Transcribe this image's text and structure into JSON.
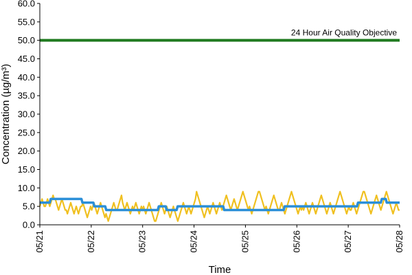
{
  "chart_data": {
    "type": "line",
    "title": "",
    "xlabel": "Time",
    "ylabel": "Concentration (µg/m³)",
    "ylim": [
      0,
      60
    ],
    "y_ticks": [
      "0.0",
      "5.0",
      "10.0",
      "15.0",
      "20.0",
      "25.0",
      "30.0",
      "35.0",
      "40.0",
      "45.0",
      "50.0",
      "55.0",
      "60.0"
    ],
    "x_ticks": [
      "05/21",
      "05/22",
      "05/23",
      "05/24",
      "05/25",
      "05/26",
      "05/27",
      "05/28"
    ],
    "x_range_days": [
      0,
      7
    ],
    "grid": false,
    "colors": {
      "hourly": "#f0c020",
      "daily": "#2b8fd8",
      "objective": "#1f7a1f"
    },
    "objective": {
      "label": "24 Hour Air Quality Objective",
      "value": 50
    },
    "series": [
      {
        "key": "hourly",
        "values": [
          5,
          6,
          7,
          6,
          5,
          5,
          6,
          7,
          6,
          5,
          6,
          7,
          8,
          7,
          7,
          6,
          5,
          4,
          5,
          6,
          7,
          6,
          5,
          4,
          4,
          3,
          4,
          5,
          6,
          5,
          4,
          3,
          4,
          5,
          4,
          3,
          4,
          5,
          5,
          6,
          5,
          4,
          3,
          2,
          3,
          4,
          5,
          4,
          5,
          6,
          5,
          4,
          3,
          4,
          5,
          6,
          5,
          4,
          3,
          2,
          3,
          2,
          1,
          2,
          3,
          4,
          5,
          6,
          5,
          4,
          4,
          5,
          6,
          7,
          8,
          6,
          5,
          4,
          5,
          6,
          5,
          4,
          3,
          4,
          5,
          4,
          5,
          6,
          5,
          4,
          3,
          4,
          5,
          4,
          5,
          4,
          3,
          4,
          5,
          6,
          5,
          4,
          3,
          2,
          1,
          1,
          2,
          3,
          4,
          5,
          6,
          5,
          4,
          3,
          4,
          5,
          4,
          3,
          2,
          3,
          4,
          5,
          4,
          3,
          2,
          1,
          2,
          3,
          4,
          5,
          6,
          5,
          4,
          3,
          4,
          5,
          4,
          3,
          4,
          5,
          6,
          7,
          9,
          8,
          7,
          6,
          5,
          4,
          3,
          2,
          3,
          4,
          5,
          4,
          3,
          4,
          5,
          6,
          5,
          4,
          3,
          4,
          5,
          6,
          5,
          4,
          5,
          6,
          7,
          8,
          7,
          6,
          5,
          4,
          5,
          6,
          7,
          6,
          5,
          4,
          5,
          6,
          7,
          8,
          9,
          8,
          7,
          6,
          5,
          4,
          5,
          4,
          3,
          4,
          5,
          6,
          7,
          8,
          9,
          9,
          8,
          7,
          6,
          5,
          4,
          5,
          4,
          3,
          4,
          5,
          6,
          7,
          8,
          7,
          6,
          5,
          4,
          4,
          5,
          6,
          5,
          4,
          3,
          4,
          5,
          6,
          7,
          8,
          9,
          8,
          7,
          6,
          5,
          4,
          3,
          4,
          5,
          4,
          5,
          4,
          5,
          6,
          5,
          4,
          3,
          4,
          5,
          6,
          5,
          4,
          3,
          4,
          5,
          6,
          7,
          8,
          7,
          6,
          5,
          4,
          3,
          4,
          5,
          6,
          5,
          4,
          3,
          4,
          5,
          6,
          7,
          8,
          9,
          8,
          7,
          6,
          5,
          4,
          3,
          4,
          5,
          4,
          4,
          5,
          6,
          5,
          4,
          3,
          4,
          5,
          6,
          7,
          8,
          9,
          9,
          8,
          7,
          6,
          5,
          4,
          3,
          4,
          5,
          6,
          7,
          8,
          7,
          6,
          5,
          4,
          5,
          6,
          7,
          8,
          9,
          8,
          7,
          6,
          5,
          4,
          3,
          4,
          5,
          6,
          5,
          4,
          4
        ]
      },
      {
        "key": "daily",
        "values": [
          6,
          6,
          6,
          6,
          6,
          6,
          6,
          6,
          6,
          6,
          6,
          7,
          7,
          7,
          7,
          7,
          7,
          7,
          7,
          7,
          7,
          7,
          7,
          7,
          7,
          7,
          7,
          7,
          7,
          7,
          7,
          7,
          7,
          7,
          7,
          7,
          7,
          7,
          7,
          7,
          7,
          7,
          7,
          6,
          6,
          6,
          6,
          6,
          6,
          6,
          6,
          6,
          6,
          6,
          6,
          5,
          5,
          5,
          5,
          5,
          5,
          5,
          5,
          5,
          5,
          5,
          5,
          4,
          4,
          4,
          4,
          4,
          4,
          4,
          4,
          4,
          4,
          4,
          4,
          4,
          4,
          4,
          4,
          4,
          4,
          4,
          4,
          4,
          4,
          4,
          4,
          4,
          4,
          4,
          4,
          4,
          4,
          4,
          4,
          4,
          4,
          4,
          4,
          4,
          4,
          4,
          4,
          4,
          4,
          4,
          4,
          4,
          4,
          4,
          4,
          4,
          4,
          4,
          4,
          4,
          5,
          5,
          5,
          5,
          5,
          5,
          5,
          5,
          4,
          4,
          4,
          4,
          4,
          4,
          4,
          4,
          4,
          4,
          4,
          5,
          5,
          5,
          5,
          5,
          5,
          5,
          5,
          5,
          5,
          5,
          5,
          5,
          5,
          5,
          5,
          5,
          5,
          5,
          5,
          5,
          5,
          5,
          5,
          5,
          5,
          5,
          5,
          5,
          5,
          5,
          5,
          5,
          5,
          5,
          5,
          5,
          5,
          5,
          5,
          5,
          5,
          5,
          5,
          5,
          5,
          5,
          4,
          4,
          4,
          4,
          4,
          4,
          4,
          4,
          4,
          4,
          4,
          4,
          4,
          4,
          4,
          4,
          4,
          4,
          4,
          4,
          4,
          4,
          4,
          4,
          4,
          4,
          4,
          4,
          4,
          4,
          4,
          4,
          4,
          4,
          4,
          4,
          4,
          4,
          4,
          4,
          4,
          4,
          4,
          4,
          4,
          4,
          4,
          4,
          4,
          4,
          4,
          4,
          4,
          4,
          4,
          4,
          4,
          4,
          4,
          4,
          4,
          5,
          5,
          5,
          5,
          5,
          5,
          5,
          5,
          5,
          5,
          5,
          5,
          5,
          5,
          5,
          5,
          5,
          5,
          5,
          5,
          5,
          5,
          5,
          5,
          5,
          5,
          5,
          5,
          5,
          5,
          5,
          5,
          5,
          5,
          5,
          5,
          5,
          5,
          5,
          5,
          5,
          5,
          5,
          5,
          5,
          5,
          5,
          5,
          5,
          5,
          5,
          5,
          5,
          5,
          5,
          5,
          5,
          5,
          5,
          5,
          5,
          5,
          5,
          5,
          5,
          5,
          5,
          5,
          5,
          5,
          5,
          5,
          5,
          5,
          6,
          6,
          6,
          6,
          6,
          6,
          6,
          6,
          6,
          6,
          6,
          6,
          6,
          6,
          6,
          6,
          6,
          6,
          6,
          6,
          6,
          6,
          6,
          6,
          7,
          7,
          7,
          7,
          7,
          6,
          6,
          6,
          6,
          6,
          6,
          6,
          6,
          6,
          6,
          6,
          6,
          6,
          6
        ]
      }
    ]
  }
}
